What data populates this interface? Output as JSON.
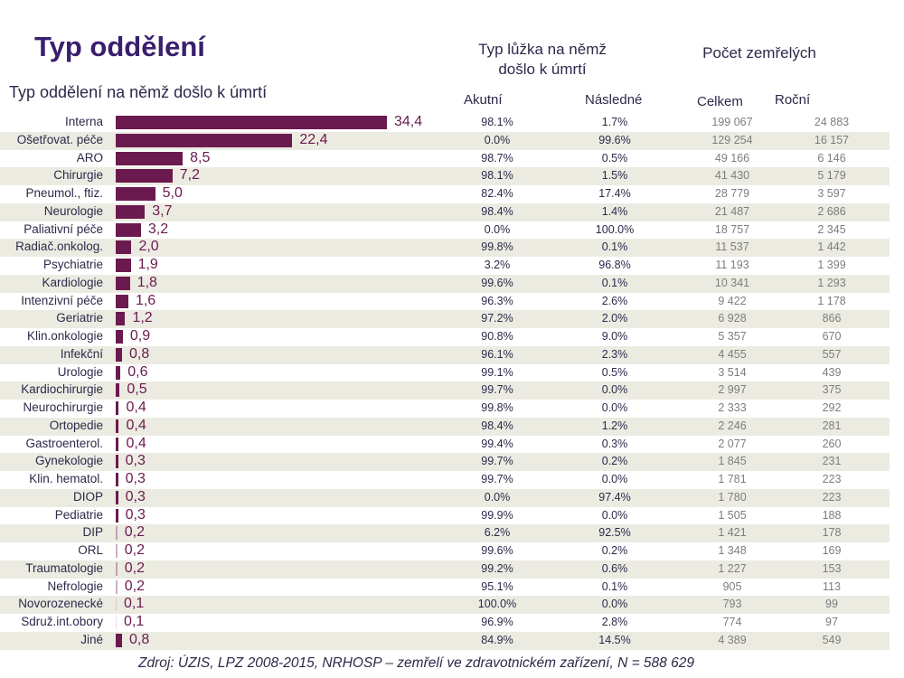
{
  "header": {
    "title": "Typ oddělení",
    "subtitle": "Typ oddělení na němž došlo k úmrtí",
    "bed_type_header": [
      "Typ lůžka na němž",
      "došlo k úmrtí"
    ],
    "deaths_header": "Počet zemřelých",
    "col_akutni": "Akutní",
    "col_nasledne": "Následné",
    "col_celkem": "Celkem",
    "col_rocni": "Roční"
  },
  "colors": {
    "bar": "#6b1a4f",
    "title": "#3a1f6e",
    "stripe": "#ecebe2"
  },
  "footer": {
    "source": "Zdroj: ÚZIS, LPZ 2008-2015, NRHOSP – zemřelí ve zdravotnickém zařízení, N = 588 629"
  },
  "chart_data": {
    "type": "bar",
    "orientation": "horizontal",
    "title": "Typ oddělení",
    "xlabel": "",
    "ylabel": "Typ oddělení na němž došlo k úmrtí",
    "unit": "%",
    "categories": [
      "Interna",
      "Ošetřovat. péče",
      "ARO",
      "Chirurgie",
      "Pneumol., ftiz.",
      "Neurologie",
      "Paliativní péče",
      "Radiač.onkolog.",
      "Psychiatrie",
      "Kardiologie",
      "Intenzivní péče",
      "Geriatrie",
      "Klin.onkologie",
      "Infekční",
      "Urologie",
      "Kardiochirurgie",
      "Neurochirurgie",
      "Ortopedie",
      "Gastroenterol.",
      "Gynekologie",
      "Klin. hematol.",
      "DIOP",
      "Pediatrie",
      "DIP",
      "ORL",
      "Traumatologie",
      "Nefrologie",
      "Novorozenecké",
      "Sdruž.int.obory",
      "Jiné"
    ],
    "values": [
      34.4,
      22.4,
      8.5,
      7.2,
      5.0,
      3.7,
      3.2,
      2.0,
      1.9,
      1.8,
      1.6,
      1.2,
      0.9,
      0.8,
      0.6,
      0.5,
      0.4,
      0.4,
      0.4,
      0.3,
      0.3,
      0.3,
      0.3,
      0.2,
      0.2,
      0.2,
      0.2,
      0.1,
      0.1,
      0.8
    ],
    "value_labels": [
      "34,4",
      "22,4",
      "8,5",
      "7,2",
      "5,0",
      "3,7",
      "3,2",
      "2,0",
      "1,9",
      "1,8",
      "1,6",
      "1,2",
      "0,9",
      "0,8",
      "0,6",
      "0,5",
      "0,4",
      "0,4",
      "0,4",
      "0,3",
      "0,3",
      "0,3",
      "0,3",
      "0,2",
      "0,2",
      "0,2",
      "0,2",
      "0,1",
      "0,1",
      "0,8"
    ],
    "xlim": [
      0,
      35
    ],
    "table": {
      "akutni": [
        "98.1%",
        "0.0%",
        "98.7%",
        "98.1%",
        "82.4%",
        "98.4%",
        "0.0%",
        "99.8%",
        "3.2%",
        "99.6%",
        "96.3%",
        "97.2%",
        "90.8%",
        "96.1%",
        "99.1%",
        "99.7%",
        "99.8%",
        "98.4%",
        "99.4%",
        "99.7%",
        "99.7%",
        "0.0%",
        "99.9%",
        "6.2%",
        "99.6%",
        "99.2%",
        "95.1%",
        "100.0%",
        "96.9%",
        "84.9%"
      ],
      "nasledne": [
        "1.7%",
        "99.6%",
        "0.5%",
        "1.5%",
        "17.4%",
        "1.4%",
        "100.0%",
        "0.1%",
        "96.8%",
        "0.1%",
        "2.6%",
        "2.0%",
        "9.0%",
        "2.3%",
        "0.5%",
        "0.0%",
        "0.0%",
        "1.2%",
        "0.3%",
        "0.2%",
        "0.0%",
        "97.4%",
        "0.0%",
        "92.5%",
        "0.2%",
        "0.6%",
        "0.1%",
        "0.0%",
        "2.8%",
        "14.5%"
      ],
      "celkem": [
        "199 067",
        "129 254",
        "49 166",
        "41 430",
        "28 779",
        "21 487",
        "18 757",
        "11 537",
        "11 193",
        "10 341",
        "9 422",
        "6 928",
        "5 357",
        "4 455",
        "3 514",
        "2 997",
        "2 333",
        "2 246",
        "2 077",
        "1 845",
        "1 781",
        "1 780",
        "1 505",
        "1 421",
        "1 348",
        "1 227",
        "905",
        "793",
        "774",
        "4 389"
      ],
      "rocni": [
        "24 883",
        "16 157",
        "6 146",
        "5 179",
        "3 597",
        "2 686",
        "2 345",
        "1 442",
        "1 399",
        "1 293",
        "1 178",
        "866",
        "670",
        "557",
        "439",
        "375",
        "292",
        "281",
        "260",
        "231",
        "223",
        "223",
        "188",
        "178",
        "169",
        "153",
        "113",
        "99",
        "97",
        "549"
      ]
    }
  }
}
